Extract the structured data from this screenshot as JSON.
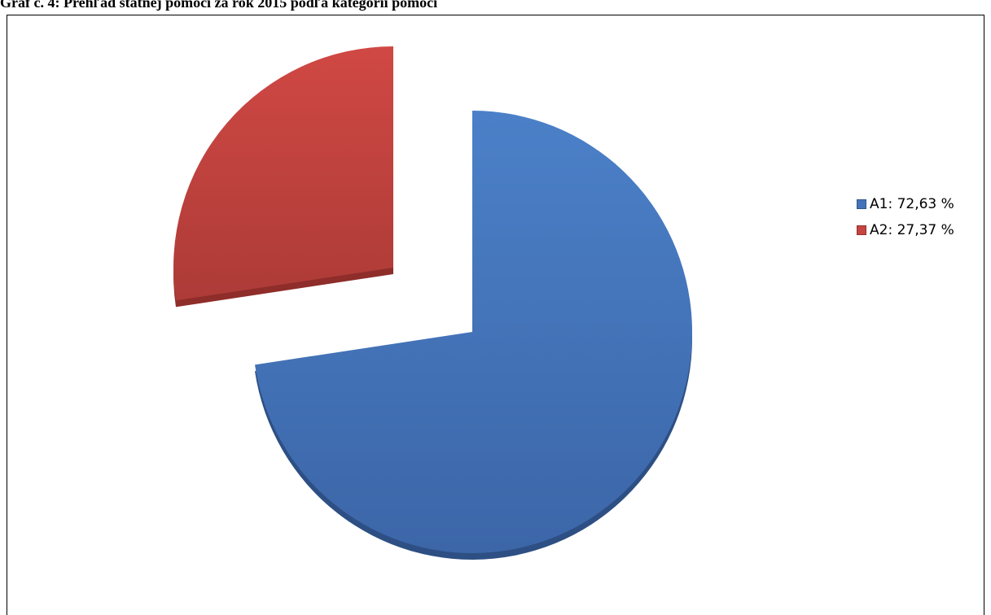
{
  "title": "Graf č. 4: Prehľad štátnej pomoci za rok 2015 podľa kategórií pomoci",
  "colors": {
    "A1": "#4473b9",
    "A2": "#c44541"
  },
  "chart_data": {
    "type": "pie",
    "categories": [
      "A1",
      "A2"
    ],
    "values": [
      72.63,
      27.37
    ],
    "unit": "%",
    "labels": [
      "A1: 72,63 %",
      "A2: 27,37 %"
    ],
    "exploded": true,
    "style": "3d",
    "legend_position": "right"
  }
}
